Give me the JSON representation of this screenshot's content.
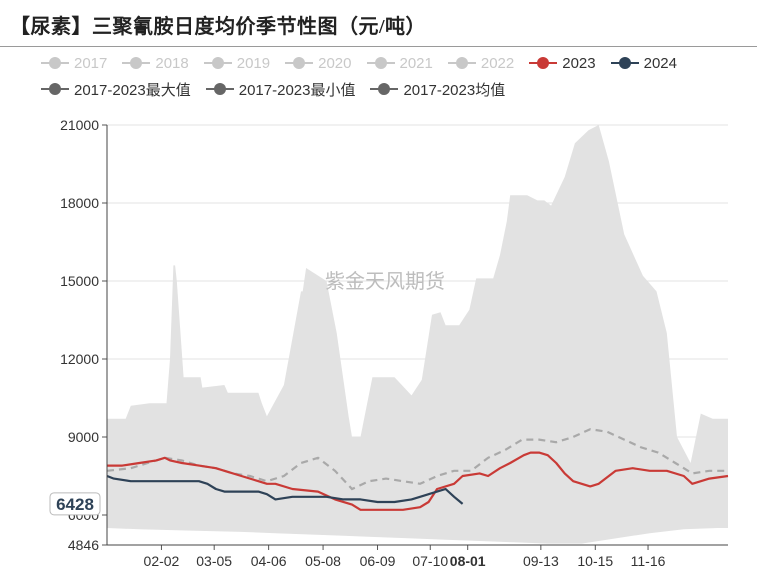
{
  "title": "【尿素】三聚氰胺日度均价季节性图（元/吨）",
  "watermark": "紫金天风期货",
  "legend": [
    {
      "label": "2017",
      "color": "#c8c8c8",
      "faded": true
    },
    {
      "label": "2018",
      "color": "#c8c8c8",
      "faded": true
    },
    {
      "label": "2019",
      "color": "#c8c8c8",
      "faded": true
    },
    {
      "label": "2020",
      "color": "#c8c8c8",
      "faded": true
    },
    {
      "label": "2021",
      "color": "#c8c8c8",
      "faded": true
    },
    {
      "label": "2022",
      "color": "#c8c8c8",
      "faded": true
    },
    {
      "label": "2023",
      "color": "#c93a36",
      "faded": false
    },
    {
      "label": "2024",
      "color": "#2e4257",
      "faded": false
    },
    {
      "label": "2017-2023最大值",
      "color": "#666666",
      "faded": false
    },
    {
      "label": "2017-2023最小值",
      "color": "#666666",
      "faded": false
    },
    {
      "label": "2017-2023均值",
      "color": "#666666",
      "faded": false
    }
  ],
  "chart_data": {
    "type": "line",
    "ylim": [
      4846,
      21000
    ],
    "y_ticks": [
      4846,
      6000,
      9000,
      12000,
      15000,
      18000,
      21000
    ],
    "x_ticks": [
      "02-02",
      "03-05",
      "04-06",
      "05-08",
      "06-09",
      "07-10",
      "08-01",
      "09-13",
      "10-15",
      "11-16"
    ],
    "x_tick_days": [
      33,
      64,
      96,
      128,
      160,
      191,
      213,
      256,
      288,
      319
    ],
    "x_range_days": [
      1,
      366
    ],
    "highlight_x": "08-01",
    "highlight_y": "6428",
    "band_max": {
      "name": "2017-2023最大值",
      "x_days": [
        1,
        12,
        15,
        26,
        36,
        38,
        40,
        41,
        42,
        46,
        56,
        57,
        70,
        72,
        90,
        92,
        95,
        105,
        115,
        116,
        118,
        130,
        136,
        143,
        145,
        150,
        157,
        170,
        180,
        186,
        192,
        197,
        200,
        208,
        214,
        218,
        228,
        232,
        236,
        238,
        248,
        254,
        258,
        262,
        270,
        276,
        284,
        290,
        296,
        305,
        316,
        324,
        330,
        336,
        344,
        350,
        357,
        366
      ],
      "values": [
        9700,
        9700,
        10200,
        10300,
        10300,
        12000,
        15600,
        15600,
        15000,
        11300,
        11300,
        10900,
        11000,
        10700,
        10700,
        10300,
        9800,
        11000,
        14600,
        14600,
        15500,
        15000,
        13000,
        9800,
        9000,
        9000,
        11300,
        11300,
        10600,
        11200,
        13700,
        13800,
        13300,
        13300,
        13900,
        15100,
        15100,
        16000,
        17300,
        18300,
        18300,
        18100,
        18100,
        17900,
        19000,
        20300,
        20800,
        21000,
        19600,
        16800,
        15200,
        14600,
        13000,
        9000,
        8000,
        9900,
        9700,
        9700
      ]
    },
    "band_min": {
      "name": "2017-2023最小值",
      "x_days": [
        1,
        20,
        50,
        80,
        100,
        120,
        140,
        160,
        180,
        200,
        220,
        240,
        260,
        280,
        300,
        320,
        340,
        360,
        366
      ],
      "values": [
        5500,
        5450,
        5400,
        5350,
        5300,
        5250,
        5200,
        5150,
        5100,
        5050,
        5000,
        4950,
        4900,
        4900,
        5100,
        5300,
        5450,
        5500,
        5500
      ]
    },
    "mean": {
      "name": "2017-2023均值",
      "x_days": [
        1,
        15,
        25,
        35,
        45,
        55,
        65,
        75,
        85,
        95,
        105,
        115,
        125,
        135,
        145,
        155,
        165,
        175,
        185,
        195,
        205,
        215,
        225,
        235,
        245,
        255,
        265,
        275,
        285,
        295,
        305,
        315,
        325,
        335,
        345,
        355,
        366
      ],
      "values": [
        7700,
        7800,
        8000,
        8200,
        8100,
        7900,
        7800,
        7600,
        7500,
        7300,
        7500,
        8000,
        8200,
        7700,
        7000,
        7300,
        7400,
        7300,
        7200,
        7500,
        7700,
        7700,
        8200,
        8500,
        8900,
        8900,
        8800,
        9000,
        9300,
        9200,
        8900,
        8600,
        8400,
        8000,
        7600,
        7700,
        7700
      ]
    },
    "series": [
      {
        "name": "2023",
        "color": "#c93a36",
        "x_days": [
          1,
          10,
          20,
          30,
          35,
          38,
          45,
          55,
          65,
          70,
          80,
          90,
          95,
          100,
          110,
          125,
          135,
          145,
          150,
          155,
          165,
          175,
          185,
          190,
          195,
          205,
          210,
          220,
          225,
          232,
          238,
          246,
          250,
          255,
          260,
          265,
          270,
          275,
          280,
          285,
          290,
          300,
          310,
          320,
          325,
          330,
          340,
          345,
          355,
          366
        ],
        "values": [
          7900,
          7900,
          8000,
          8100,
          8200,
          8100,
          8000,
          7900,
          7800,
          7700,
          7500,
          7300,
          7200,
          7200,
          7000,
          6900,
          6600,
          6400,
          6200,
          6200,
          6200,
          6200,
          6300,
          6500,
          7000,
          7200,
          7500,
          7600,
          7500,
          7800,
          8000,
          8300,
          8400,
          8400,
          8300,
          8000,
          7600,
          7300,
          7200,
          7100,
          7200,
          7700,
          7800,
          7700,
          7700,
          7700,
          7500,
          7200,
          7400,
          7500
        ]
      },
      {
        "name": "2024",
        "color": "#2e4257",
        "x_days": [
          1,
          5,
          15,
          25,
          35,
          45,
          55,
          60,
          65,
          70,
          80,
          90,
          95,
          100,
          110,
          120,
          130,
          140,
          150,
          160,
          170,
          180,
          185,
          190,
          195,
          200,
          205,
          210
        ],
        "values": [
          7500,
          7400,
          7300,
          7300,
          7300,
          7300,
          7300,
          7200,
          7000,
          6900,
          6900,
          6900,
          6800,
          6600,
          6700,
          6700,
          6700,
          6600,
          6600,
          6500,
          6500,
          6600,
          6700,
          6800,
          6900,
          7000,
          6700,
          6428
        ]
      }
    ]
  }
}
